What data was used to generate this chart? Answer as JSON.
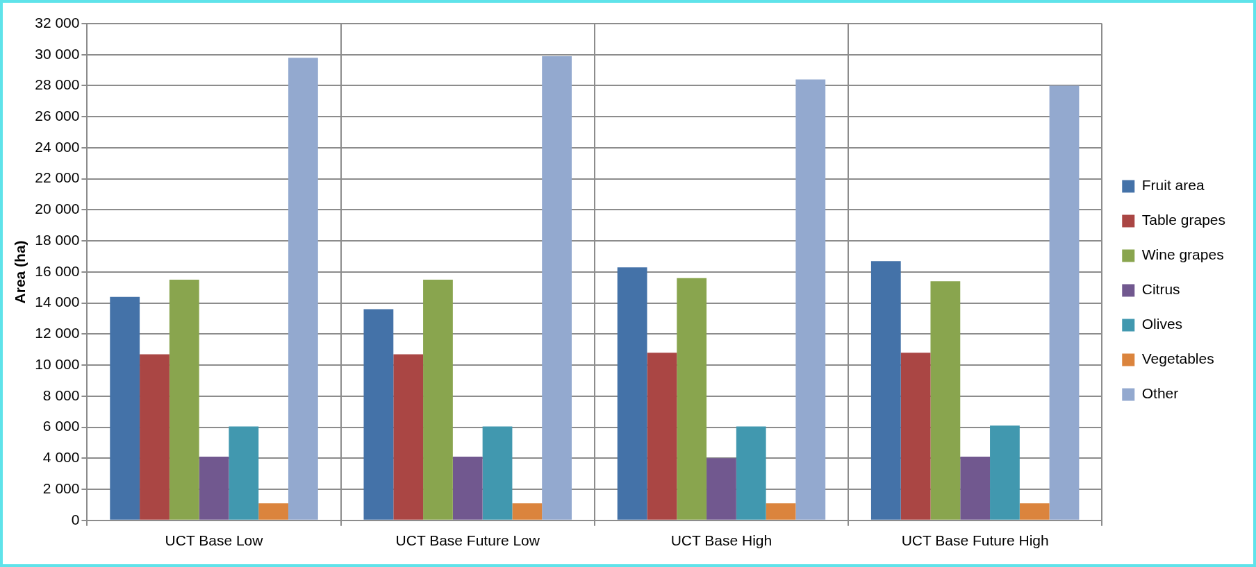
{
  "chart_data": {
    "type": "bar",
    "ylabel": "Area (ha)",
    "categories": [
      "UCT Base Low",
      "UCT Base Future Low",
      "UCT Base High",
      "UCT Base Future High"
    ],
    "series": [
      {
        "name": "Fruit area",
        "color": "#4472a8",
        "values": [
          14400,
          13600,
          16300,
          16700
        ]
      },
      {
        "name": "Table grapes",
        "color": "#aa4644",
        "values": [
          10700,
          10700,
          10800,
          10800
        ]
      },
      {
        "name": "Wine grapes",
        "color": "#89a54e",
        "values": [
          15500,
          15500,
          15600,
          15400
        ]
      },
      {
        "name": "Citrus",
        "color": "#71588f",
        "values": [
          4100,
          4100,
          4000,
          4100
        ]
      },
      {
        "name": "Olives",
        "color": "#4198af",
        "values": [
          6050,
          6050,
          6050,
          6100
        ]
      },
      {
        "name": "Vegetables",
        "color": "#db843d",
        "values": [
          1100,
          1100,
          1100,
          1100
        ]
      },
      {
        "name": "Other",
        "color": "#93a9cf",
        "values": [
          29800,
          29900,
          28400,
          28000
        ]
      }
    ],
    "ylim": [
      0,
      32000
    ],
    "yticks": [
      {
        "value": 0,
        "label": "0"
      },
      {
        "value": 2000,
        "label": "2 000"
      },
      {
        "value": 4000,
        "label": "4 000"
      },
      {
        "value": 6000,
        "label": "6 000"
      },
      {
        "value": 8000,
        "label": "8 000"
      },
      {
        "value": 10000,
        "label": "10 000"
      },
      {
        "value": 12000,
        "label": "12 000"
      },
      {
        "value": 14000,
        "label": "14 000"
      },
      {
        "value": 16000,
        "label": "16 000"
      },
      {
        "value": 18000,
        "label": "18 000"
      },
      {
        "value": 20000,
        "label": "20 000"
      },
      {
        "value": 22000,
        "label": "22 000"
      },
      {
        "value": 24000,
        "label": "24 000"
      },
      {
        "value": 26000,
        "label": "26 000"
      },
      {
        "value": 28000,
        "label": "28 000"
      },
      {
        "value": 30000,
        "label": "30 000"
      },
      {
        "value": 32000,
        "label": "32 000"
      }
    ],
    "grid": true,
    "legend": "right"
  }
}
